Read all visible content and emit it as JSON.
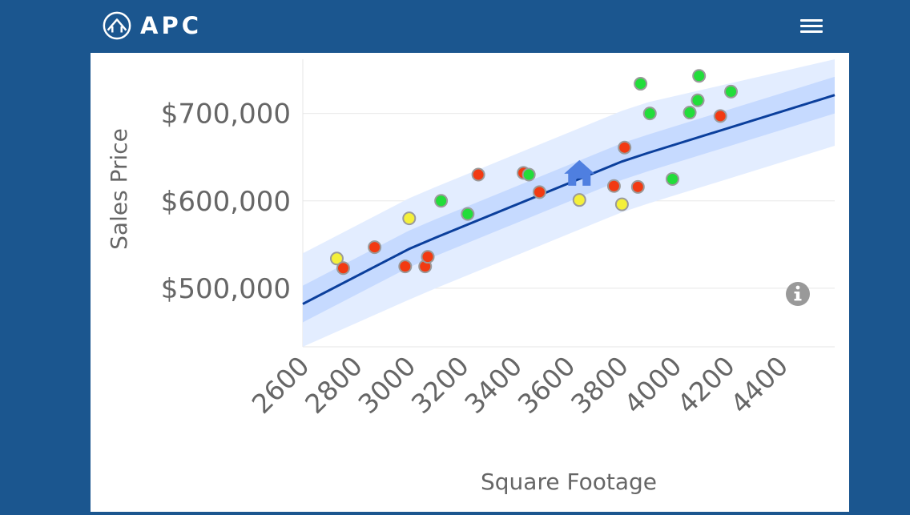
{
  "header": {
    "brand": "APC",
    "logo_icon": "house-circle-icon",
    "menu_icon": "hamburger-menu-icon"
  },
  "colors": {
    "header_bg": "#1b568f",
    "band_outer": "#e3edff",
    "band_inner": "#c6daff",
    "trend_line": "#0b3f9c",
    "point_green": "#22dd3a",
    "point_red": "#f23a12",
    "point_yellow": "#f4f03a",
    "subject_marker": "#4f7fe0"
  },
  "chart_data": {
    "type": "scatter",
    "xlabel": "Square Footage",
    "ylabel": "Sales Price",
    "xlim": [
      2600,
      4600
    ],
    "ylim": [
      433000,
      762000
    ],
    "x_ticks": [
      2600,
      2800,
      3000,
      3200,
      3400,
      3600,
      3800,
      4000,
      4200,
      4400
    ],
    "x_tick_labels": [
      "2600",
      "2800",
      "3000",
      "3200",
      "3400",
      "3600",
      "3800",
      "4000",
      "4200",
      "4400"
    ],
    "y_ticks": [
      500000,
      600000,
      700000
    ],
    "y_tick_labels": [
      "$500,000",
      "$600,000",
      "$700,000"
    ],
    "trend": {
      "x": [
        2600,
        3000,
        3100,
        3800,
        3900,
        4600
      ],
      "y": [
        482000,
        545000,
        558000,
        645000,
        655000,
        721000
      ]
    },
    "bands": {
      "inner_half_width": 21000,
      "outer_half_width": 58000
    },
    "subject_property": {
      "x": 3640,
      "y": 632000,
      "icon": "house-icon"
    },
    "info_icon": "info-icon",
    "points": [
      {
        "x": 2728,
        "y": 534000,
        "color": "yellow"
      },
      {
        "x": 2752,
        "y": 523000,
        "color": "red"
      },
      {
        "x": 2870,
        "y": 547000,
        "color": "red"
      },
      {
        "x": 2985,
        "y": 525000,
        "color": "red"
      },
      {
        "x": 3000,
        "y": 580000,
        "color": "yellow"
      },
      {
        "x": 3060,
        "y": 525000,
        "color": "red"
      },
      {
        "x": 3070,
        "y": 536000,
        "color": "red"
      },
      {
        "x": 3120,
        "y": 600000,
        "color": "green"
      },
      {
        "x": 3220,
        "y": 585000,
        "color": "green"
      },
      {
        "x": 3260,
        "y": 630000,
        "color": "red"
      },
      {
        "x": 3430,
        "y": 632000,
        "color": "red"
      },
      {
        "x": 3450,
        "y": 630000,
        "color": "green"
      },
      {
        "x": 3490,
        "y": 610000,
        "color": "red"
      },
      {
        "x": 3640,
        "y": 601000,
        "color": "yellow"
      },
      {
        "x": 3770,
        "y": 617000,
        "color": "red"
      },
      {
        "x": 3800,
        "y": 596000,
        "color": "yellow"
      },
      {
        "x": 3810,
        "y": 661000,
        "color": "red"
      },
      {
        "x": 3860,
        "y": 616000,
        "color": "red"
      },
      {
        "x": 3870,
        "y": 734000,
        "color": "green"
      },
      {
        "x": 3905,
        "y": 700000,
        "color": "green"
      },
      {
        "x": 3990,
        "y": 625000,
        "color": "green"
      },
      {
        "x": 4055,
        "y": 701000,
        "color": "green"
      },
      {
        "x": 4085,
        "y": 715000,
        "color": "green"
      },
      {
        "x": 4090,
        "y": 743000,
        "color": "green"
      },
      {
        "x": 4170,
        "y": 697000,
        "color": "red"
      },
      {
        "x": 4210,
        "y": 725000,
        "color": "green"
      }
    ]
  }
}
